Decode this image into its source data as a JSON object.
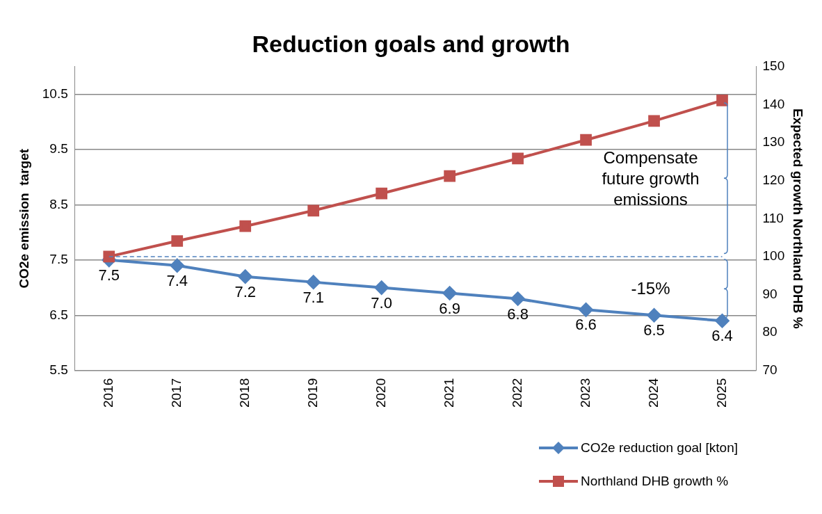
{
  "chart_data": {
    "type": "line",
    "title": "Reduction goals and growth",
    "ylabel": "CO2e emission  target",
    "y2label": "Expected growth Northland DHB %",
    "categories": [
      "2016",
      "2017",
      "2018",
      "2019",
      "2020",
      "2021",
      "2022",
      "2023",
      "2024",
      "2025"
    ],
    "series": [
      {
        "name": "CO2e reduction goal [kton]",
        "color": "#4f81bd",
        "marker": "diamond",
        "values": [
          7.5,
          7.4,
          7.2,
          7.1,
          7.0,
          6.9,
          6.8,
          6.6,
          6.5,
          6.4
        ],
        "value_labels": [
          "7.5",
          "7.4",
          "7.2",
          "7.1",
          "7.0",
          "6.9",
          "6.8",
          "6.6",
          "6.5",
          "6.4"
        ]
      },
      {
        "name": "Northland DHB growth %",
        "color": "#c0504d",
        "marker": "square",
        "axis": "y2",
        "values": [
          100,
          104.1,
          108,
          112.1,
          116.6,
          121.2,
          125.8,
          130.7,
          135.7,
          141.1
        ]
      }
    ],
    "ylim": [
      5.5,
      11
    ],
    "yticks": [
      5.5,
      6.5,
      7.5,
      8.5,
      9.5,
      10.5
    ],
    "y2lim": [
      70,
      150
    ],
    "y2ticks": [
      70,
      80,
      90,
      100,
      110,
      120,
      130,
      140,
      150
    ],
    "grid": "y",
    "legend": "bottom right",
    "line_style": "solid",
    "ref_lines": [
      {
        "axis": "y2",
        "value": 100,
        "color": "#4f81bd",
        "line_style": "dashed"
      }
    ],
    "annotations": [
      "Compensate future growth emissions",
      "-15%"
    ]
  }
}
